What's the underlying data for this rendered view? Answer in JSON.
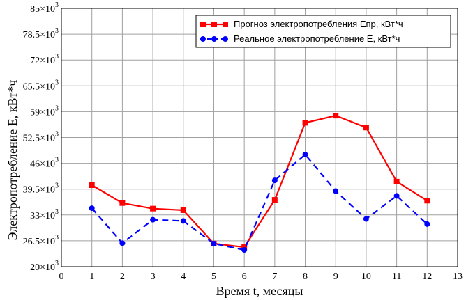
{
  "chart_data": {
    "type": "line",
    "xlabel": "Время t, месяцы",
    "ylabel": "Электропотребление E, кВт*ч",
    "xlim": [
      0,
      13
    ],
    "ylim": [
      20000,
      85000
    ],
    "x_ticks": [
      0,
      1,
      2,
      3,
      4,
      5,
      6,
      7,
      8,
      9,
      10,
      11,
      12,
      13
    ],
    "y_ticks": [
      20000,
      26500,
      33000,
      39500,
      46000,
      52500,
      59000,
      65500,
      72000,
      78500,
      85000
    ],
    "y_tick_labels": [
      {
        "mantissa": "20",
        "sep": "×10",
        "exp": "3"
      },
      {
        "mantissa": "26.5",
        "sep": "×10",
        "exp": "3"
      },
      {
        "mantissa": "33",
        "sep": "×10",
        "exp": "3"
      },
      {
        "mantissa": "39.5",
        "sep": "×10",
        "exp": "3"
      },
      {
        "mantissa": "46",
        "sep": "×10",
        "exp": "3"
      },
      {
        "mantissa": "52.5",
        "sep": "×10",
        "exp": "3"
      },
      {
        "mantissa": "59",
        "sep": "×10",
        "exp": "3"
      },
      {
        "mantissa": "65.5",
        "sep": "×10",
        "exp": "3"
      },
      {
        "mantissa": "72",
        "sep": "×10",
        "exp": "3"
      },
      {
        "mantissa": "78.5",
        "sep": "×10",
        "exp": "3"
      },
      {
        "mantissa": "85",
        "sep": "×10",
        "exp": "3"
      }
    ],
    "grid": true,
    "legend_position": "top-right",
    "x": [
      1,
      2,
      3,
      4,
      5,
      6,
      7,
      8,
      9,
      10,
      11,
      12
    ],
    "series": [
      {
        "name": "Прогноз электропотребления Eпр, кВт*ч",
        "color": "#ff0000",
        "line_style": "solid",
        "marker": "square",
        "values": [
          40500,
          36000,
          34600,
          34200,
          25800,
          24900,
          36800,
          56200,
          58000,
          55000,
          41400,
          36600
        ]
      },
      {
        "name": "Реальное электропотребление E, кВт*ч",
        "color": "#0000ff",
        "line_style": "dashed",
        "marker": "circle",
        "values": [
          34700,
          25900,
          31800,
          31500,
          25800,
          24200,
          41700,
          48200,
          39000,
          32000,
          37800,
          30700
        ]
      }
    ]
  }
}
